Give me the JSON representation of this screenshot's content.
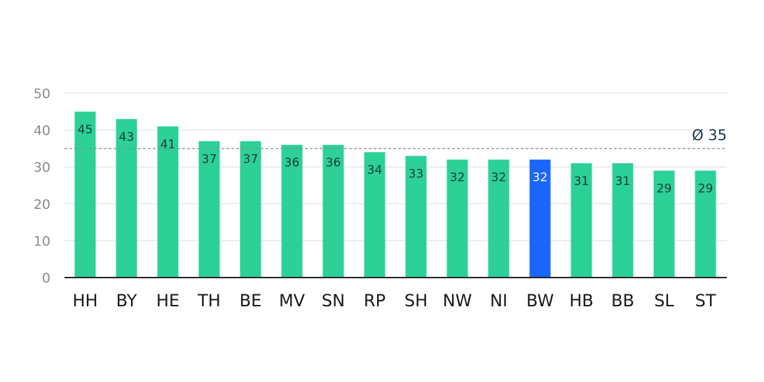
{
  "chart_data": {
    "type": "bar",
    "categories": [
      "HH",
      "BY",
      "HE",
      "TH",
      "BE",
      "MV",
      "SN",
      "RP",
      "SH",
      "NW",
      "NI",
      "BW",
      "HB",
      "BB",
      "SL",
      "ST"
    ],
    "values": [
      45,
      43,
      41,
      37,
      37,
      36,
      36,
      34,
      33,
      32,
      32,
      32,
      31,
      31,
      29,
      29
    ],
    "highlight": "BW",
    "ylim": [
      0,
      50
    ],
    "yticks": [
      0,
      10,
      20,
      30,
      40,
      50
    ],
    "grid": true,
    "average": {
      "value": 35,
      "label": "Ø 35"
    },
    "colors": {
      "bar": "#2bd196",
      "highlight": "#1a66ff",
      "grid": "#dedede",
      "average_line": "#8a8a8a",
      "axis": "#222222"
    }
  }
}
